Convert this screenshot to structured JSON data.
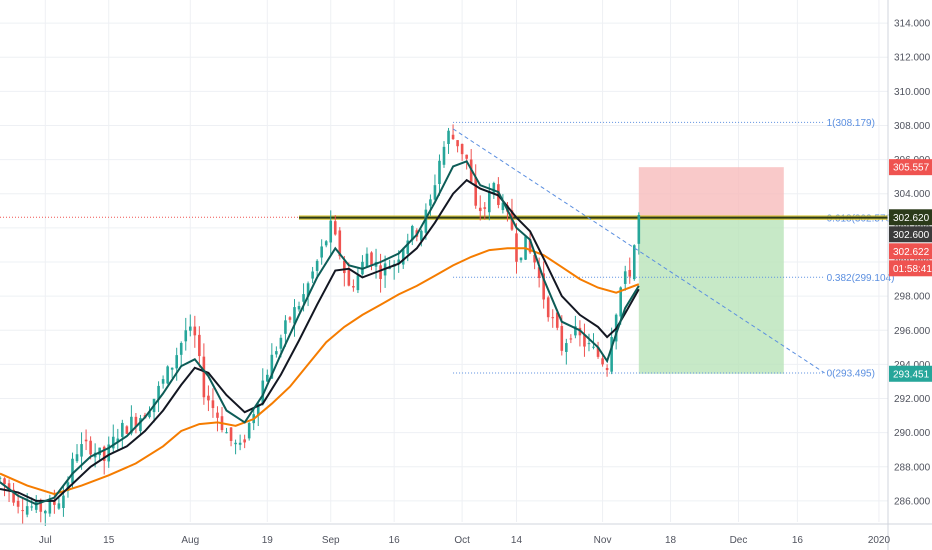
{
  "chart_data": {
    "type": "candlestick",
    "colors": {
      "up": "#26a69a",
      "down": "#ef5350",
      "ema_fast": "#0d5c57",
      "ema_mid": "#131722",
      "ema_slow": "#f57c00",
      "fib": "#5b8fe0",
      "resistance": "#2b3a1a",
      "stop_zone": "#f8bcbc",
      "target_zone": "#b9e3b9",
      "tag_red": "#ef5350",
      "tag_dark": "#3b3b3b",
      "tag_green": "#26a69a",
      "grid": "#eef0f4"
    },
    "y_axis": {
      "range": [
        285,
        315
      ],
      "ticks": [
        "286.000",
        "288.000",
        "290.000",
        "292.000",
        "294.000",
        "296.000",
        "298.000",
        "300.000",
        "302.000",
        "304.000",
        "306.000",
        "308.000",
        "310.000",
        "312.000",
        "314.000"
      ]
    },
    "x_axis": {
      "range": [
        0,
        196
      ],
      "ticks": [
        {
          "label": "Jul",
          "x": 10
        },
        {
          "label": "15",
          "x": 24
        },
        {
          "label": "Aug",
          "x": 42
        },
        {
          "label": "19",
          "x": 59
        },
        {
          "label": "Sep",
          "x": 73
        },
        {
          "label": "16",
          "x": 87
        },
        {
          "label": "Oct",
          "x": 102
        },
        {
          "label": "14",
          "x": 114
        },
        {
          "label": "Nov",
          "x": 133
        },
        {
          "label": "18",
          "x": 148
        },
        {
          "label": "Dec",
          "x": 163
        },
        {
          "label": "16",
          "x": 176
        },
        {
          "label": "2020",
          "x": 194
        }
      ]
    },
    "price_path": [
      [
        0,
        287.3
      ],
      [
        4,
        286.0
      ],
      [
        8,
        285.5
      ],
      [
        11,
        285.6
      ],
      [
        14,
        286.4
      ],
      [
        17,
        289.0
      ],
      [
        20,
        289.2
      ],
      [
        23,
        288.4
      ],
      [
        26,
        290.0
      ],
      [
        29,
        290.6
      ],
      [
        32,
        291.2
      ],
      [
        35,
        292.5
      ],
      [
        38,
        294.0
      ],
      [
        41,
        296.0
      ],
      [
        43,
        295.5
      ],
      [
        45,
        292.5
      ],
      [
        48,
        291.0
      ],
      [
        51,
        289.5
      ],
      [
        53,
        289.0
      ],
      [
        55,
        290.5
      ],
      [
        58,
        293.0
      ],
      [
        61,
        295.0
      ],
      [
        64,
        296.7
      ],
      [
        67,
        298.0
      ],
      [
        70,
        300.0
      ],
      [
        73,
        302.0
      ],
      [
        75,
        300.5
      ],
      [
        77,
        298.5
      ],
      [
        79,
        299.2
      ],
      [
        81,
        300.5
      ],
      [
        84,
        299.5
      ],
      [
        87,
        300.0
      ],
      [
        90,
        301.5
      ],
      [
        93,
        302.0
      ],
      [
        95,
        303.5
      ],
      [
        97,
        306.0
      ],
      [
        99,
        307.5
      ],
      [
        101,
        307.0
      ],
      [
        103,
        306.0
      ],
      [
        105,
        303.0
      ],
      [
        107,
        303.2
      ],
      [
        109,
        304.5
      ],
      [
        111,
        303.0
      ],
      [
        113,
        302.0
      ],
      [
        114,
        300.5
      ],
      [
        116,
        301.0
      ],
      [
        118,
        300.0
      ],
      [
        120,
        298.0
      ],
      [
        122,
        296.5
      ],
      [
        124,
        295.0
      ],
      [
        126,
        296.0
      ],
      [
        128,
        295.5
      ],
      [
        130,
        295.0
      ],
      [
        132,
        294.5
      ],
      [
        134,
        294.0
      ],
      [
        135,
        296.0
      ],
      [
        137,
        298.5
      ],
      [
        139,
        299.5
      ],
      [
        140,
        301.0
      ],
      [
        141,
        302.6
      ]
    ],
    "ema_fast": [
      [
        0,
        287.1
      ],
      [
        4,
        286.3
      ],
      [
        8,
        285.8
      ],
      [
        12,
        286.2
      ],
      [
        16,
        287.6
      ],
      [
        20,
        288.6
      ],
      [
        24,
        289.1
      ],
      [
        28,
        289.8
      ],
      [
        32,
        290.9
      ],
      [
        36,
        292.3
      ],
      [
        40,
        293.9
      ],
      [
        43,
        294.3
      ],
      [
        46,
        293.3
      ],
      [
        50,
        291.3
      ],
      [
        54,
        290.6
      ],
      [
        58,
        292.2
      ],
      [
        62,
        294.6
      ],
      [
        66,
        296.9
      ],
      [
        70,
        299.1
      ],
      [
        74,
        300.8
      ],
      [
        77,
        299.8
      ],
      [
        80,
        299.6
      ],
      [
        84,
        300.0
      ],
      [
        88,
        300.5
      ],
      [
        92,
        301.6
      ],
      [
        96,
        303.5
      ],
      [
        100,
        305.6
      ],
      [
        103,
        305.9
      ],
      [
        106,
        304.5
      ],
      [
        110,
        304.1
      ],
      [
        114,
        302.0
      ],
      [
        117,
        301.3
      ],
      [
        120,
        299.0
      ],
      [
        124,
        296.5
      ],
      [
        128,
        296.0
      ],
      [
        132,
        295.0
      ],
      [
        134,
        294.2
      ],
      [
        136,
        295.8
      ],
      [
        138,
        297.3
      ],
      [
        141,
        298.6
      ]
    ],
    "ema_mid": [
      [
        0,
        286.7
      ],
      [
        4,
        286.5
      ],
      [
        8,
        286.0
      ],
      [
        12,
        286.0
      ],
      [
        16,
        287.0
      ],
      [
        20,
        288.0
      ],
      [
        24,
        288.7
      ],
      [
        28,
        289.2
      ],
      [
        32,
        290.1
      ],
      [
        36,
        291.3
      ],
      [
        40,
        292.8
      ],
      [
        43,
        293.8
      ],
      [
        46,
        293.5
      ],
      [
        50,
        292.2
      ],
      [
        54,
        291.2
      ],
      [
        58,
        291.7
      ],
      [
        62,
        293.4
      ],
      [
        66,
        295.4
      ],
      [
        70,
        297.5
      ],
      [
        74,
        299.5
      ],
      [
        77,
        299.6
      ],
      [
        80,
        299.1
      ],
      [
        84,
        299.5
      ],
      [
        88,
        299.9
      ],
      [
        92,
        300.8
      ],
      [
        96,
        302.3
      ],
      [
        100,
        304.0
      ],
      [
        103,
        304.8
      ],
      [
        106,
        304.3
      ],
      [
        110,
        303.9
      ],
      [
        114,
        302.6
      ],
      [
        117,
        301.8
      ],
      [
        120,
        300.2
      ],
      [
        124,
        298.0
      ],
      [
        128,
        296.9
      ],
      [
        132,
        296.2
      ],
      [
        134,
        295.6
      ],
      [
        136,
        296.1
      ],
      [
        138,
        297.0
      ],
      [
        141,
        298.4
      ]
    ],
    "ema_slow": [
      [
        0,
        287.6
      ],
      [
        6,
        286.9
      ],
      [
        12,
        286.4
      ],
      [
        18,
        286.9
      ],
      [
        24,
        287.5
      ],
      [
        30,
        288.2
      ],
      [
        36,
        289.2
      ],
      [
        40,
        290.1
      ],
      [
        44,
        290.5
      ],
      [
        48,
        290.6
      ],
      [
        52,
        290.4
      ],
      [
        56,
        290.8
      ],
      [
        60,
        291.7
      ],
      [
        64,
        292.7
      ],
      [
        68,
        294.0
      ],
      [
        72,
        295.3
      ],
      [
        76,
        296.2
      ],
      [
        80,
        296.9
      ],
      [
        84,
        297.5
      ],
      [
        88,
        298.1
      ],
      [
        92,
        298.6
      ],
      [
        96,
        299.2
      ],
      [
        100,
        299.8
      ],
      [
        104,
        300.3
      ],
      [
        108,
        300.7
      ],
      [
        112,
        300.8
      ],
      [
        116,
        300.8
      ],
      [
        120,
        300.4
      ],
      [
        124,
        299.7
      ],
      [
        128,
        299.0
      ],
      [
        132,
        298.5
      ],
      [
        136,
        298.2
      ],
      [
        138,
        298.4
      ],
      [
        141,
        298.7
      ]
    ],
    "fib_levels": [
      {
        "label": "1(308.179)",
        "value": 308.179
      },
      {
        "label": "0.618(302.570)",
        "value": 302.57
      },
      {
        "label": "0.382(299.104)",
        "value": 299.104
      },
      {
        "label": "0(293.495)",
        "value": 293.495
      }
    ],
    "fib_range_x": [
      100,
      182
    ],
    "trendline": {
      "from": [
        100,
        307.8
      ],
      "to": [
        182,
        293.5
      ]
    },
    "resistance": {
      "value": 302.6,
      "from_x": 66
    },
    "current_price_line": 302.62,
    "position": {
      "x_range": [
        141,
        173
      ],
      "entry": 302.62,
      "stop": 305.557,
      "target": 293.451
    },
    "price_tags": [
      {
        "text": "305.557",
        "value": 305.557,
        "color": "#ef5350"
      },
      {
        "text": "302.620",
        "value": 302.62,
        "color": "#2b3a1a"
      },
      {
        "text": "302.600",
        "value": 302.6,
        "color": "#3b3b3b"
      },
      {
        "text": "302.622",
        "value": 302.622,
        "color": "#ef5350"
      },
      {
        "text": "01:58:41",
        "value": 302.622,
        "color": "#ef5350"
      },
      {
        "text": "293.451",
        "value": 293.451,
        "color": "#26a69a"
      }
    ]
  }
}
